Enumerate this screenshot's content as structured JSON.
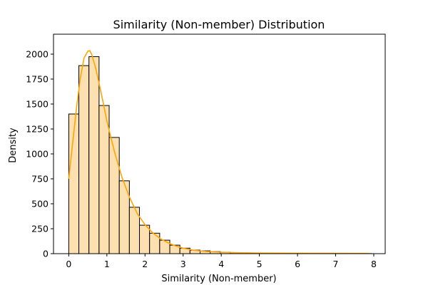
{
  "chart_data": {
    "type": "bar",
    "title": "Similarity (Non-member) Distribution",
    "xlabel": "Similarity (Non-member)",
    "ylabel": "Density",
    "xlim": [
      -0.4,
      8.3
    ],
    "ylim": [
      0,
      2200
    ],
    "xticks": [
      0,
      1,
      2,
      3,
      4,
      5,
      6,
      7,
      8
    ],
    "yticks": [
      0,
      250,
      500,
      750,
      1000,
      1250,
      1500,
      1750,
      2000
    ],
    "bin_width": 0.265,
    "bin_start": 0,
    "values": [
      1400,
      1885,
      1975,
      1485,
      1165,
      730,
      465,
      285,
      205,
      135,
      85,
      55,
      35,
      28,
      20,
      14,
      10,
      7,
      5,
      4,
      3,
      2,
      2,
      2,
      1,
      1,
      1,
      1,
      1,
      1
    ],
    "kde": {
      "x": [
        0,
        0.1,
        0.2,
        0.3,
        0.4,
        0.5,
        0.55,
        0.6,
        0.7,
        0.8,
        0.9,
        1.0,
        1.2,
        1.4,
        1.6,
        1.8,
        2.0,
        2.2,
        2.4,
        2.6,
        2.8,
        3.0,
        3.3,
        3.6,
        4.0,
        4.5,
        5.0,
        6.0,
        7.0,
        7.9
      ],
      "y": [
        750,
        1100,
        1450,
        1750,
        1960,
        2030,
        2035,
        2000,
        1870,
        1700,
        1520,
        1330,
        1020,
        760,
        560,
        400,
        290,
        210,
        150,
        110,
        78,
        55,
        33,
        22,
        14,
        9,
        6,
        4,
        3,
        2
      ]
    },
    "bar_color": "#fde0b0",
    "line_color": "#ffa500",
    "grid": false,
    "legend": false
  }
}
